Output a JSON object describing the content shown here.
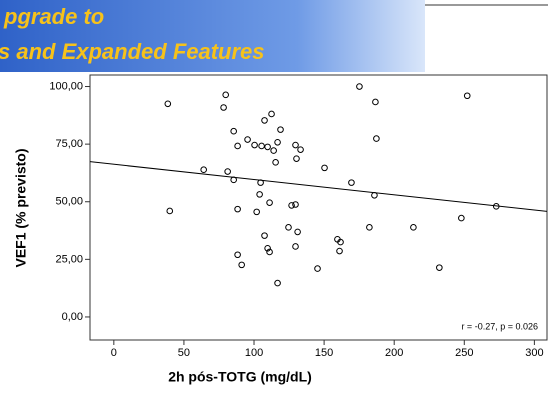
{
  "watermark": {
    "line1": "pgrade to",
    "line2": "s and Expanded Features"
  },
  "chart_data": {
    "type": "scatter",
    "x_label": "2h pós-TOTG (mg/dL)",
    "y_label": "VEF1 (% previsto)",
    "annotation": "r = -0.27, p = 0.026",
    "xlim": [
      -17,
      309
    ],
    "ylim": [
      -10,
      105
    ],
    "xticks": [
      0,
      50,
      100,
      150,
      200,
      250,
      300
    ],
    "yticks": [
      {
        "value": 0,
        "label": "0,00"
      },
      {
        "value": 25,
        "label": "25,00"
      },
      {
        "value": 50,
        "label": "50,00"
      },
      {
        "value": 75,
        "label": "75,00"
      },
      {
        "value": 100,
        "label": "100,00"
      }
    ],
    "fit_line": true,
    "series": [
      {
        "color": "#000000",
        "x": [
          38.5,
          79.8,
          78.3,
          175.2,
          252.1,
          186.6,
          112.5,
          107.5,
          85.5,
          118.9,
          95.4,
          187.3,
          116.8,
          105.4,
          100.4,
          109.7,
          88.3,
          129.6,
          133.2,
          114,
          130.3,
          64.1,
          150.3,
          115.4,
          81.2,
          85.5,
          104.7,
          169.5,
          185.9,
          104,
          111.1,
          126.8,
          129.6,
          88.3,
          39.9,
          101.9,
          124.6,
          131.1,
          182.3,
          213.7,
          247.9,
          272.8,
          159.5,
          161.7,
          107.5,
          88.3,
          129.6,
          109.7,
          111.1,
          161,
          91.2,
          145.3,
          232.2,
          116.8
        ],
        "values": [
          92.5,
          96.4,
          90.9,
          100,
          96,
          93.3,
          88.1,
          85.3,
          80.6,
          81.3,
          77,
          77.4,
          75.8,
          74.2,
          74.6,
          73.8,
          74.2,
          74.6,
          72.6,
          72.2,
          68.7,
          63.9,
          64.7,
          67.1,
          63.1,
          59.5,
          58.3,
          58.3,
          52.8,
          53.2,
          49.6,
          48.4,
          48.8,
          46.8,
          46,
          45.6,
          38.9,
          36.9,
          38.9,
          38.9,
          42.9,
          48,
          33.7,
          32.5,
          35.3,
          27,
          30.6,
          29.8,
          28.2,
          28.6,
          22.6,
          21,
          21.4,
          14.7
        ]
      }
    ]
  }
}
